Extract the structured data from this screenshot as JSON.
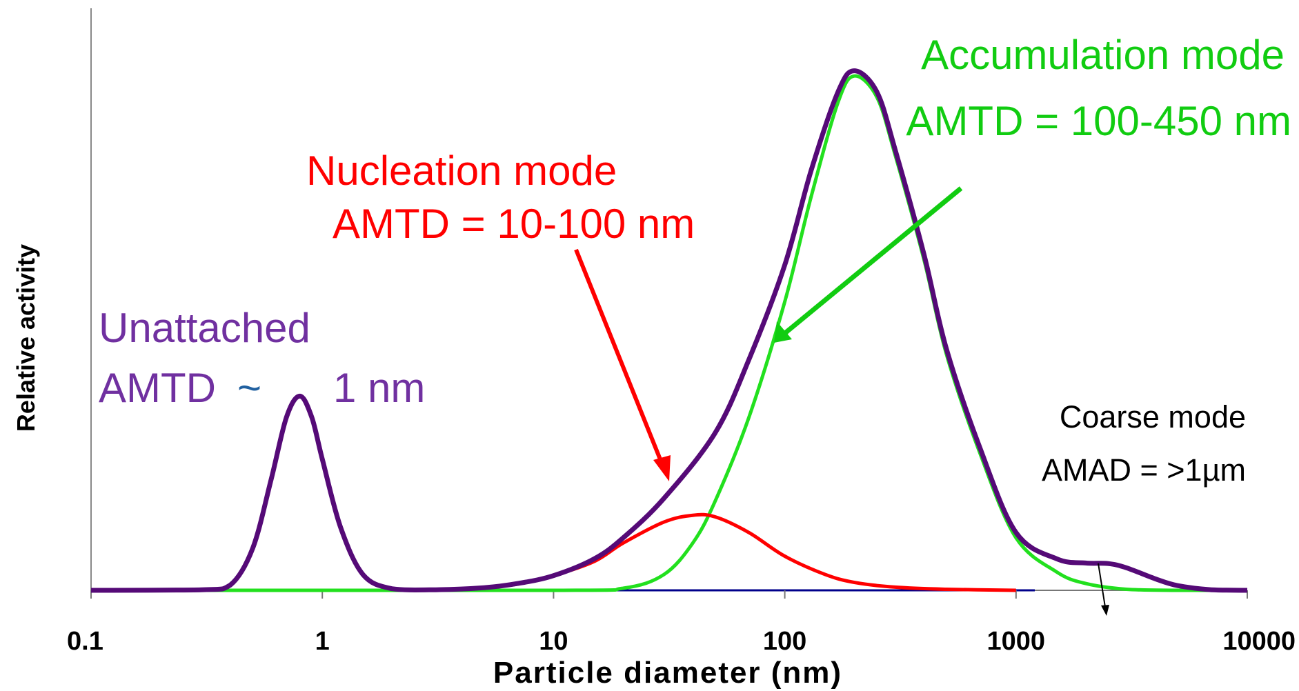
{
  "chart_data": {
    "type": "line",
    "x_scale": "log",
    "xlim": [
      0.1,
      10000
    ],
    "ylim": [
      0,
      1
    ],
    "grid": false,
    "xlabel": "Particle diameter (nm)",
    "ylabel": "Relative activity",
    "x_ticks": [
      "0.1",
      "1",
      "10",
      "100",
      "1000",
      "10000"
    ],
    "series": [
      {
        "color": "#550a77",
        "x": [
          0.1,
          0.3,
          0.4,
          0.5,
          0.6,
          0.7,
          0.8,
          0.9,
          1.0,
          1.2,
          1.5,
          2,
          3,
          5,
          7,
          10,
          15,
          20,
          30,
          50,
          70,
          100,
          130,
          170,
          200,
          250,
          300,
          400,
          500,
          700,
          1000,
          1500,
          2000,
          2500,
          3000,
          4000,
          5000,
          7000,
          10000
        ],
        "y": [
          0,
          0.001,
          0.01,
          0.08,
          0.21,
          0.33,
          0.37,
          0.33,
          0.25,
          0.12,
          0.03,
          0.003,
          0.001,
          0.005,
          0.013,
          0.028,
          0.06,
          0.1,
          0.175,
          0.3,
          0.44,
          0.62,
          0.8,
          0.95,
          0.99,
          0.95,
          0.84,
          0.64,
          0.46,
          0.27,
          0.11,
          0.06,
          0.052,
          0.051,
          0.043,
          0.022,
          0.009,
          0.001,
          0
        ]
      },
      {
        "color": "#ff0000",
        "x": [
          3,
          5,
          7,
          10,
          15,
          20,
          30,
          40,
          50,
          70,
          100,
          150,
          200,
          300,
          500,
          1000
        ],
        "y": [
          0.001,
          0.005,
          0.012,
          0.028,
          0.055,
          0.09,
          0.13,
          0.143,
          0.14,
          0.11,
          0.065,
          0.03,
          0.015,
          0.006,
          0.002,
          0
        ]
      },
      {
        "color": "#22e01e",
        "x": [
          0.1,
          10,
          20,
          30,
          40,
          50,
          70,
          100,
          130,
          170,
          200,
          250,
          300,
          400,
          500,
          700,
          1000,
          1500,
          2000,
          3000,
          5000,
          10000
        ],
        "y": [
          0,
          0,
          0.004,
          0.03,
          0.09,
          0.17,
          0.33,
          0.55,
          0.75,
          0.93,
          0.98,
          0.94,
          0.83,
          0.63,
          0.45,
          0.26,
          0.1,
          0.035,
          0.013,
          0.002,
          0,
          0
        ]
      }
    ],
    "annotations": {
      "unattached_l1": "Unattached",
      "unattached_l2": "AMTD",
      "unattached_tilde": "~",
      "unattached_val": "1 nm",
      "nucleation_l1": "Nucleation mode",
      "nucleation_l2": "AMTD = 10-100 nm",
      "accumulation_l1": "Accumulation mode",
      "accumulation_l2": "AMTD = 100-450 nm",
      "coarse_l1": "Coarse mode",
      "coarse_l2": "AMAD = >1µm"
    },
    "colors": {
      "total": "#550a77",
      "nucleation": "#ff0000",
      "accumulation": "#22e01e",
      "unattached_text": "#7030a0",
      "accumulation_text": "#11cc11",
      "arrow_green": "#11cc11",
      "tilde": "#2060a0",
      "baseline": "#00008b",
      "coarse_text": "#000000"
    }
  }
}
